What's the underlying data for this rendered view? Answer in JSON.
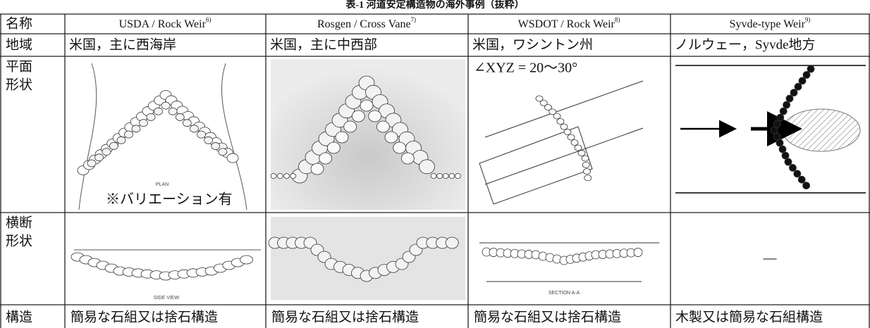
{
  "caption": "表-1 河道安定構造物の海外事例（抜粋）",
  "table": {
    "header": {
      "label": "名称",
      "columns": [
        {
          "name": "USDA / Rock Weir",
          "ref": "6)"
        },
        {
          "name": "Rosgen / Cross Vane",
          "ref": "7)"
        },
        {
          "name": "WSDOT / Rock Weir",
          "ref": "8)"
        },
        {
          "name": "Syvde-type Weir",
          "ref": "9)"
        }
      ]
    },
    "region_row": {
      "label": "地域",
      "cells": [
        "米国，主に西海岸",
        "米国，主に中西部",
        "米国，ワシントン州",
        "ノルウェー，Syvde地方"
      ]
    },
    "plan_row": {
      "label": [
        "平面",
        "形状"
      ],
      "figure_label": "PLAN",
      "note": "※バリエーション有",
      "angle_note": "∠XYZ = 20〜30°"
    },
    "section_row": {
      "label": [
        "横断",
        "形状"
      ],
      "figure_labels": [
        "SIDE VIEW",
        "SECTION A-A"
      ],
      "empty_cell": "—"
    },
    "structure_row": {
      "label": "構造",
      "cells": [
        "簡易な石組又は捨石構造",
        "簡易な石組又は捨石構造",
        "簡易な石組又は捨石構造",
        "木製又は簡易な石組構造"
      ]
    }
  }
}
